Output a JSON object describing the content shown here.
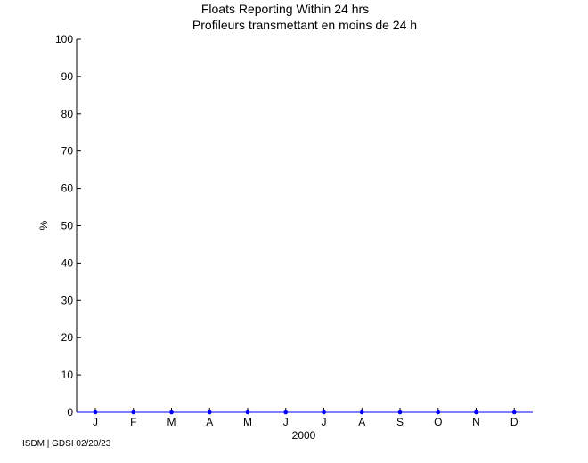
{
  "chart_data": {
    "type": "line",
    "title": "Floats Reporting Within 24 hrs",
    "subtitle": "Profileurs transmettant en moins de 24 h",
    "ylabel": "%",
    "xlabel": "2000",
    "categories": [
      "J",
      "F",
      "M",
      "A",
      "M",
      "J",
      "J",
      "A",
      "S",
      "O",
      "N",
      "D"
    ],
    "ylim": [
      0,
      100
    ],
    "yticks": [
      0,
      10,
      20,
      30,
      40,
      50,
      60,
      70,
      80,
      90,
      100
    ],
    "series": [
      {
        "values": [
          0,
          0,
          0,
          0,
          0,
          0,
          0,
          0,
          0,
          0,
          0,
          0
        ],
        "color": "#0000ff"
      }
    ],
    "grid": false
  },
  "footer": "ISDM | GDSI 02/20/23"
}
